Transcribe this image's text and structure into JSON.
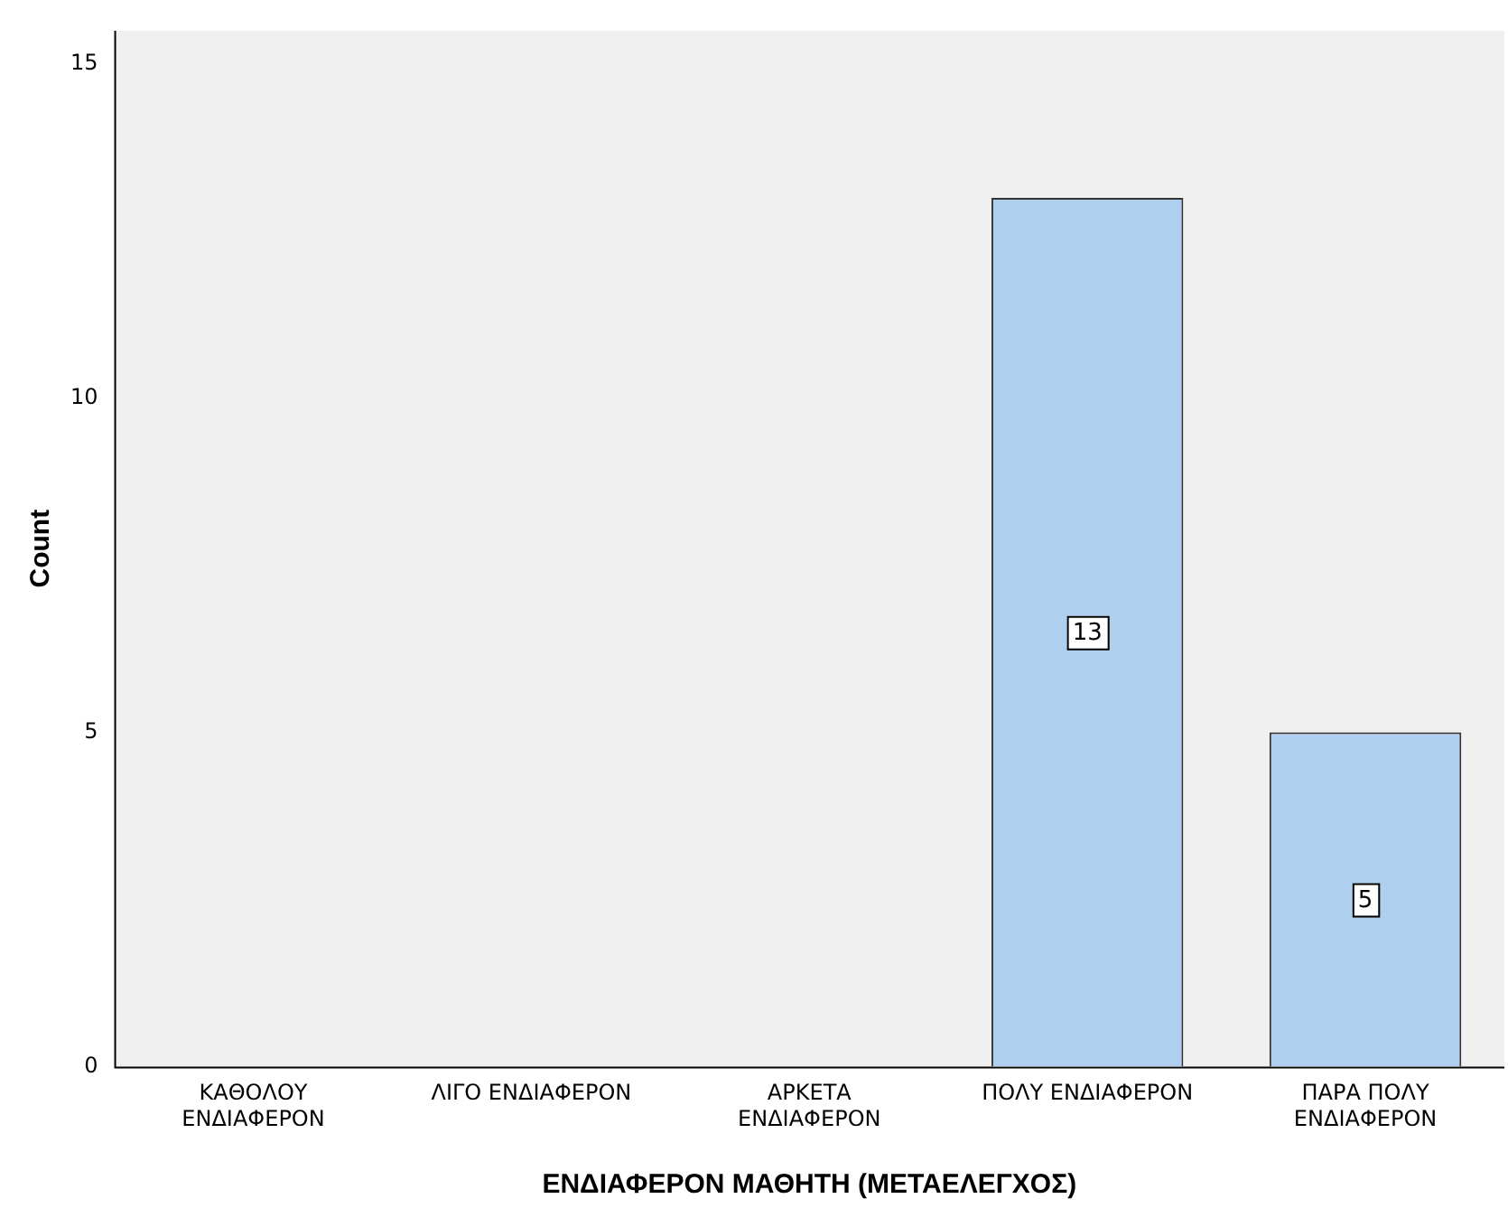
{
  "chart_data": {
    "type": "bar",
    "xlabel": "ΕΝΔΙΑΦΕΡΟΝ ΜΑΘΗΤΗ (ΜΕΤΑΕΛΕΓΧΟΣ)",
    "ylabel": "Count",
    "categories": [
      "ΚΑΘΟΛΟΥ ΕΝΔΙΑΦΕΡΟΝ",
      "ΛΙΓΟ ΕΝΔΙΑΦΕΡΟΝ",
      "ΑΡΚΕΤΑ ΕΝΔΙΑΦΕΡΟΝ",
      "ΠΟΛΥ ΕΝΔΙΑΦΕΡΟΝ",
      "ΠΑΡΑ ΠΟΛΥ ΕΝΔΙΑΦΕΡΟΝ"
    ],
    "values": [
      0,
      0,
      0,
      13,
      5
    ],
    "value_labels": [
      null,
      null,
      null,
      "13",
      "5"
    ],
    "color": "#aed0ee",
    "ylim": [
      0,
      15.5
    ],
    "yticks": [
      0,
      5,
      10,
      15
    ],
    "grid": false,
    "legend": false
  }
}
